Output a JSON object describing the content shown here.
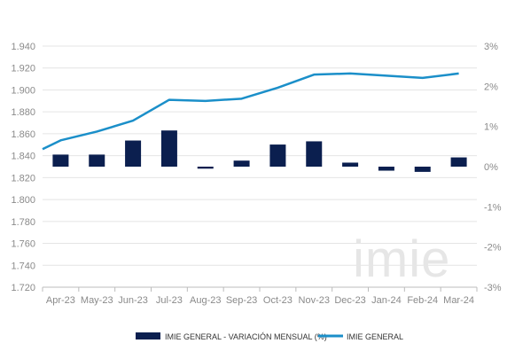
{
  "chart_data": {
    "type": "bar+line",
    "categories": [
      "Apr-23",
      "May-23",
      "Jun-23",
      "Jul-23",
      "Aug-23",
      "Sep-23",
      "Oct-23",
      "Nov-23",
      "Dec-23",
      "Jan-24",
      "Feb-24",
      "Mar-24"
    ],
    "series": [
      {
        "name": "IMIE GENERAL - VARIACIÓN MENSUAL (%)",
        "type": "bar",
        "axis": "right",
        "color": "#0b1f4f",
        "values": [
          0.3,
          0.3,
          0.65,
          0.9,
          -0.05,
          0.15,
          0.55,
          0.63,
          0.1,
          -0.1,
          -0.13,
          0.23
        ]
      },
      {
        "name": "IMIE GENERAL",
        "type": "line",
        "axis": "left",
        "color": "#1b8fc9",
        "values": [
          1854,
          1862,
          1872,
          1891,
          1890,
          1892,
          1902,
          1914,
          1915,
          1913,
          1911,
          1915
        ],
        "start_value": 1846
      }
    ],
    "y_left": {
      "min": 1720,
      "max": 1940,
      "ticks": [
        "1.720",
        "1.740",
        "1.760",
        "1.780",
        "1.800",
        "1.820",
        "1.840",
        "1.860",
        "1.880",
        "1.900",
        "1.920",
        "1.940"
      ]
    },
    "y_right": {
      "min": -3,
      "max": 3,
      "ticks": [
        "-3%",
        "-2%",
        "-1%",
        "0%",
        "1%",
        "2%",
        "3%"
      ]
    },
    "gridlines": true,
    "legend_position": "bottom",
    "watermark": "imie"
  }
}
